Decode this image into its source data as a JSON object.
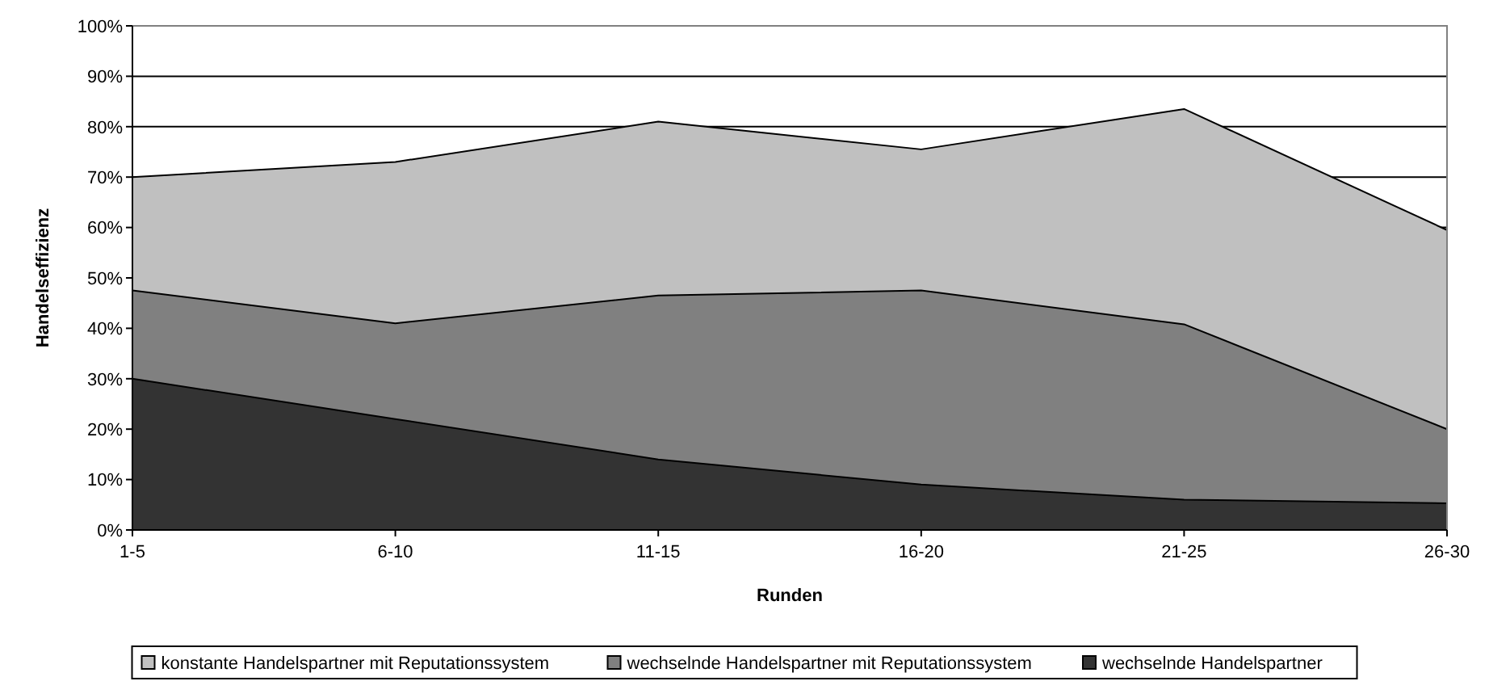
{
  "chart_data": {
    "type": "area",
    "xlabel": "Runden",
    "ylabel": "Handelseffizienz",
    "categories": [
      "1-5",
      "6-10",
      "11-15",
      "16-20",
      "21-25",
      "26-30"
    ],
    "series": [
      {
        "name": "konstante Handelspartner mit Reputationssystem",
        "color": "#c0c0c0",
        "values": [
          70,
          73,
          81,
          75.5,
          83.5,
          59.5
        ]
      },
      {
        "name": "wechselnde Handelspartner mit Reputationssystem",
        "color": "#808080",
        "values": [
          47.5,
          41,
          46.5,
          47.5,
          40.8,
          20
        ]
      },
      {
        "name": "wechselnde Handelspartner",
        "color": "#333333",
        "values": [
          30,
          22,
          14,
          9,
          6,
          5.3
        ]
      }
    ],
    "ylim": [
      0,
      100
    ],
    "yticks": [
      {
        "value": 0,
        "label": "0%"
      },
      {
        "value": 10,
        "label": "10%"
      },
      {
        "value": 20,
        "label": "20%"
      },
      {
        "value": 30,
        "label": "30%"
      },
      {
        "value": 40,
        "label": "40%"
      },
      {
        "value": 50,
        "label": "50%"
      },
      {
        "value": 60,
        "label": "60%"
      },
      {
        "value": 70,
        "label": "70%"
      },
      {
        "value": 80,
        "label": "80%"
      },
      {
        "value": 90,
        "label": "90%"
      },
      {
        "value": 100,
        "label": "100%"
      }
    ],
    "grid": "y",
    "legend": "bottom"
  }
}
